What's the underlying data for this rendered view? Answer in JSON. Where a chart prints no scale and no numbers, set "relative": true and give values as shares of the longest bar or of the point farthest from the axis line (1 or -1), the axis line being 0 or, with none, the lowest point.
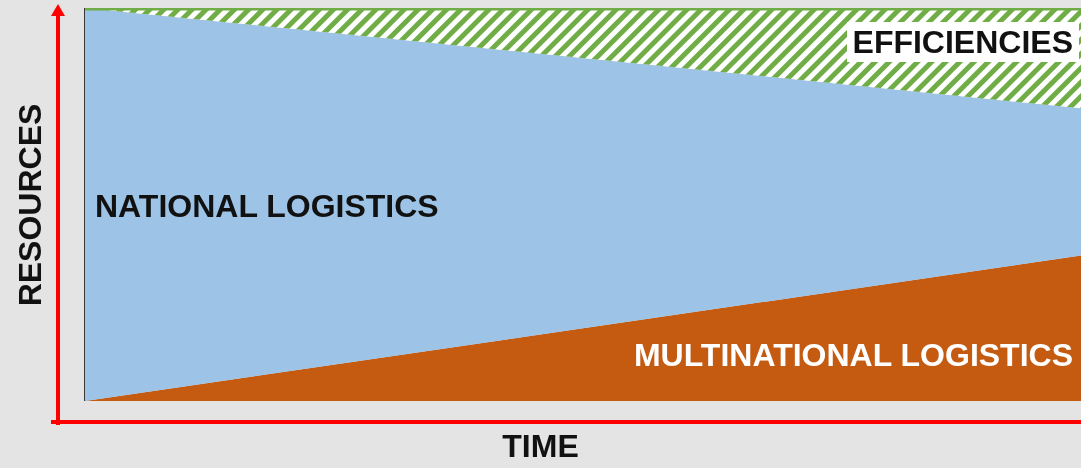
{
  "chart_data": {
    "type": "area",
    "stacked": true,
    "relative": true,
    "xlabel": "TIME",
    "ylabel": "RESOURCES",
    "categories": [
      null,
      null
    ],
    "tick_labels": false,
    "legend": false,
    "grid": false,
    "series": [
      {
        "name": "MULTINATIONAL LOGISTICS",
        "color": "#c55a11",
        "values": [
          0,
          0.37
        ]
      },
      {
        "name": "NATIONAL LOGISTICS",
        "color": "#9dc3e6",
        "values": [
          1,
          0.375
        ]
      },
      {
        "name": "EFFICIENCIES",
        "color": "#70ad47",
        "values": [
          0,
          0.255
        ]
      }
    ]
  }
}
